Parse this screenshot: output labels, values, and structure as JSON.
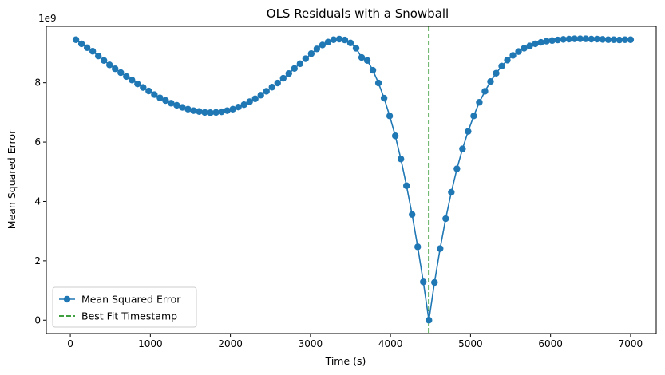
{
  "chart_data": {
    "type": "line",
    "title": "OLS Residuals with a Snowball",
    "xlabel": "Time (s)",
    "ylabel": "Mean Squared Error",
    "y_offset_text": "1e9",
    "xlim": [
      -300,
      7320
    ],
    "ylim": [
      -0.45,
      9.9
    ],
    "y_scale_factor": 1000000000,
    "xticks": [
      0,
      1000,
      2000,
      3000,
      4000,
      5000,
      6000,
      7000
    ],
    "xtick_labels": [
      "0",
      "1000",
      "2000",
      "3000",
      "4000",
      "5000",
      "6000",
      "7000"
    ],
    "yticks": [
      0,
      2,
      4,
      6,
      8
    ],
    "ytick_labels": [
      "0",
      "2",
      "4",
      "6",
      "8"
    ],
    "grid": false,
    "legend_position": "lower-left",
    "series": [
      {
        "name": "Mean Squared Error",
        "color": "#1f77b4",
        "marker": "circle",
        "x": [
          70,
          140,
          210,
          280,
          350,
          420,
          490,
          560,
          630,
          700,
          770,
          840,
          910,
          980,
          1050,
          1120,
          1190,
          1260,
          1330,
          1400,
          1470,
          1540,
          1610,
          1680,
          1750,
          1820,
          1890,
          1960,
          2030,
          2100,
          2170,
          2240,
          2310,
          2380,
          2450,
          2520,
          2590,
          2660,
          2730,
          2800,
          2870,
          2940,
          3010,
          3080,
          3150,
          3220,
          3290,
          3360,
          3430,
          3500,
          3570,
          3640,
          3710,
          3780,
          3850,
          3920,
          3990,
          4060,
          4130,
          4200,
          4270,
          4340,
          4410,
          4480,
          4550,
          4620,
          4690,
          4760,
          4830,
          4900,
          4970,
          5040,
          5110,
          5180,
          5250,
          5320,
          5390,
          5460,
          5530,
          5600,
          5670,
          5740,
          5810,
          5880,
          5950,
          6020,
          6090,
          6160,
          6230,
          6300,
          6370,
          6440,
          6510,
          6580,
          6650,
          6720,
          6790,
          6860,
          6930,
          7000
        ],
        "values": [
          9.45,
          9.31,
          9.18,
          9.06,
          8.9,
          8.75,
          8.6,
          8.47,
          8.34,
          8.21,
          8.09,
          7.96,
          7.84,
          7.72,
          7.6,
          7.49,
          7.4,
          7.31,
          7.24,
          7.17,
          7.11,
          7.06,
          7.03,
          7.0,
          6.99,
          7.0,
          7.02,
          7.06,
          7.11,
          7.18,
          7.26,
          7.36,
          7.46,
          7.58,
          7.71,
          7.85,
          7.99,
          8.15,
          8.31,
          8.48,
          8.64,
          8.81,
          8.98,
          9.14,
          9.27,
          9.37,
          9.45,
          9.47,
          9.44,
          9.34,
          9.16,
          8.85,
          8.75,
          8.42,
          7.99,
          7.48,
          6.88,
          6.21,
          5.43,
          4.53,
          3.56,
          2.47,
          1.29,
          0.0,
          1.27,
          2.41,
          3.42,
          4.31,
          5.1,
          5.77,
          6.36,
          6.88,
          7.34,
          7.71,
          8.04,
          8.32,
          8.56,
          8.76,
          8.92,
          9.05,
          9.16,
          9.24,
          9.31,
          9.36,
          9.4,
          9.42,
          9.44,
          9.46,
          9.47,
          9.48,
          9.48,
          9.48,
          9.47,
          9.47,
          9.46,
          9.45,
          9.45,
          9.44,
          9.45,
          9.45
        ]
      },
      {
        "name": "Best Fit Timestamp",
        "color": "#008000",
        "style": "dashed",
        "type": "vline",
        "x": 4480
      }
    ]
  }
}
